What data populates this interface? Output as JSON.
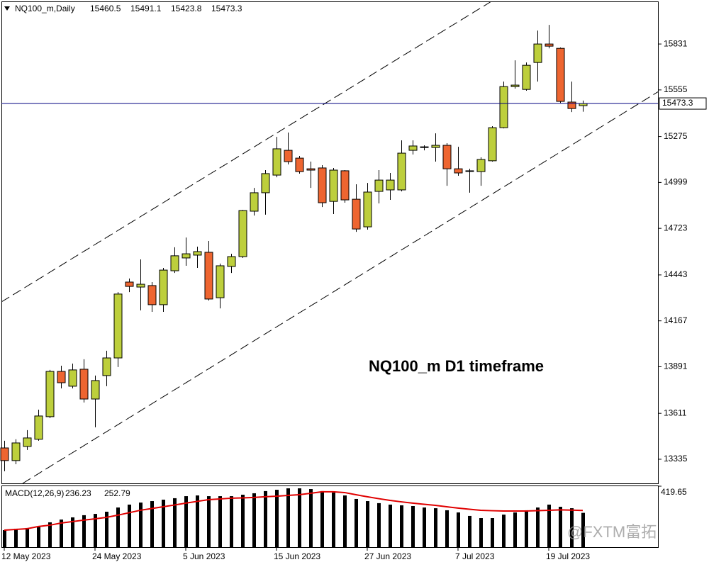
{
  "chart_data": [
    {
      "type": "candlestick",
      "title": "NQ100_m,Daily",
      "annotation": "NQ100_m D1 timeframe",
      "watermark": "@FXTM富拓",
      "categories": [
        "12 May 2023",
        null,
        null,
        null,
        null,
        null,
        null,
        null,
        "24 May 2023",
        null,
        null,
        null,
        null,
        null,
        null,
        null,
        "5 Jun 2023",
        null,
        null,
        null,
        null,
        null,
        null,
        null,
        "15 Jun 2023",
        null,
        null,
        null,
        null,
        null,
        null,
        null,
        "27 Jun 2023",
        null,
        null,
        null,
        null,
        null,
        null,
        null,
        "7 Jul 2023",
        null,
        null,
        null,
        null,
        null,
        null,
        null,
        "19 Jul 2023",
        null,
        null,
        null
      ],
      "open": [
        13403,
        13327,
        13412,
        13455,
        13591,
        13863,
        13774,
        13876,
        13697,
        13838,
        13944,
        14400,
        14370,
        14379,
        14264,
        14468,
        14545,
        14562,
        14579,
        14306,
        14494,
        14553,
        14826,
        14937,
        15043,
        15192,
        15145,
        15081,
        15086,
        14885,
        15069,
        14898,
        14732,
        14945,
        14954,
        14954,
        15192,
        15209,
        15209,
        15222,
        15081,
        15069,
        15064,
        15129,
        15328,
        15575,
        15558,
        15720,
        15831,
        15805,
        15482,
        15460.5
      ],
      "high": [
        13446,
        13455,
        13510,
        13633,
        13872,
        13897,
        13910,
        13936,
        13838,
        13987,
        14340,
        14421,
        14536,
        14400,
        14485,
        14609,
        14668,
        14613,
        14647,
        14511,
        14570,
        14834,
        14966,
        15073,
        15273,
        15299,
        15158,
        15124,
        15103,
        15086,
        15073,
        14988,
        14996,
        15073,
        15056,
        15252,
        15252,
        15222,
        15294,
        15235,
        15213,
        15081,
        15150,
        15337,
        15605,
        15733,
        15720,
        15912,
        15946,
        15810,
        15605,
        15491.1
      ],
      "low": [
        13263,
        13305,
        13391,
        13446,
        13582,
        13761,
        13761,
        13676,
        13527,
        13774,
        13889,
        14340,
        14230,
        14221,
        14221,
        14455,
        14498,
        14485,
        14289,
        14242,
        14455,
        14545,
        14800,
        14805,
        15030,
        15107,
        15052,
        14966,
        14851,
        14809,
        14877,
        14702,
        14715,
        14873,
        14894,
        14945,
        15167,
        15192,
        15124,
        14979,
        15039,
        14937,
        14979,
        15124,
        15324,
        15563,
        15550,
        15605,
        15805,
        15477,
        15422,
        15423.8
      ],
      "close": [
        13327,
        13433,
        13463,
        13595,
        13863,
        13795,
        13872,
        13697,
        13808,
        13944,
        14328,
        14374,
        14387,
        14264,
        14472,
        14558,
        14570,
        14583,
        14298,
        14498,
        14553,
        14830,
        14937,
        15052,
        15201,
        15124,
        15064,
        15073,
        14877,
        15073,
        14894,
        14719,
        14941,
        15013,
        15013,
        15175,
        15218,
        15213,
        15222,
        15081,
        15056,
        15065,
        15137,
        15328,
        15575,
        15584,
        15703,
        15831,
        15818,
        15486,
        15443,
        15473.3
      ],
      "up_color": "#bdcf3c",
      "down_color": "#ee6530",
      "price_line_color": "#000080",
      "ylim": [
        13190,
        16087
      ],
      "yticks": [
        15831,
        15555,
        15275,
        14999,
        14723,
        14443,
        14167,
        13891,
        13611,
        13335
      ]
    },
    {
      "type": "macd",
      "title": "MACD(12,26,9)",
      "values": [
        117,
        127,
        132,
        142,
        171,
        190,
        205,
        220,
        229,
        244,
        273,
        293,
        307,
        317,
        327,
        337,
        351,
        356,
        351,
        351,
        351,
        361,
        371,
        386,
        395,
        405,
        405,
        400,
        386,
        376,
        356,
        332,
        317,
        303,
        293,
        288,
        283,
        273,
        268,
        254,
        239,
        215,
        200,
        200,
        224,
        239,
        254,
        273,
        293,
        278,
        268,
        236.23
      ],
      "signal": [
        117,
        122,
        127,
        142,
        151,
        166,
        176,
        186,
        195,
        205,
        220,
        237,
        254,
        266,
        278,
        290,
        303,
        315,
        327,
        332,
        337,
        339,
        342,
        347,
        351,
        356,
        361,
        371,
        381,
        381,
        376,
        361,
        347,
        334,
        322,
        312,
        303,
        295,
        288,
        278,
        269,
        261,
        254,
        251,
        249,
        249,
        249,
        251,
        254,
        257,
        255,
        252.79
      ],
      "color": "#000000",
      "signal_color": "#e00000",
      "ylim": [
        0,
        419.65
      ],
      "yticks": [
        419.65
      ]
    }
  ]
}
